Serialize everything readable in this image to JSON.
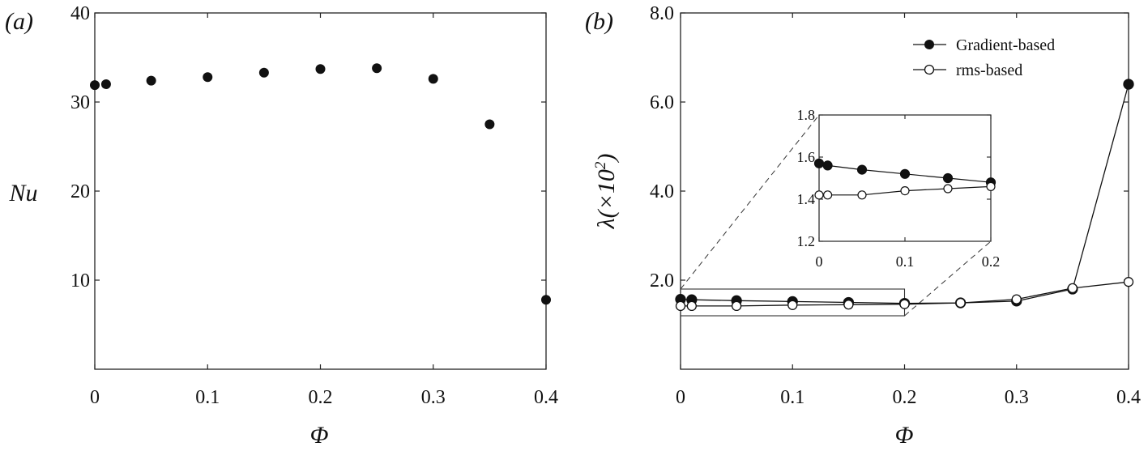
{
  "chart_data": [
    {
      "type": "scatter",
      "panel_label": "(a)",
      "xlabel": "Φ",
      "ylabel": "Nu",
      "xlim": [
        0,
        0.4
      ],
      "ylim": [
        0,
        40
      ],
      "xticks": [
        "0",
        "0.1",
        "0.2",
        "0.3",
        "0.4"
      ],
      "yticks": [
        "10",
        "20",
        "30",
        "40"
      ],
      "series": [
        {
          "marker": "filled-circle",
          "x": [
            0,
            0.01,
            0.05,
            0.1,
            0.15,
            0.2,
            0.25,
            0.3,
            0.35,
            0.4
          ],
          "y": [
            31.9,
            32.0,
            32.4,
            32.8,
            33.3,
            33.7,
            33.8,
            32.6,
            27.5,
            7.8
          ]
        }
      ]
    },
    {
      "type": "line",
      "panel_label": "(b)",
      "xlabel": "Φ",
      "ylabel": "λ(×10",
      "ylabel_sup": "2",
      "ylabel_close": ")",
      "xlim": [
        0,
        0.4
      ],
      "ylim": [
        0,
        8.0
      ],
      "xticks": [
        "0",
        "0.1",
        "0.2",
        "0.3",
        "0.4"
      ],
      "yticks": [
        "2.0",
        "4.0",
        "6.0",
        "8.0"
      ],
      "legend": "top-right",
      "series": [
        {
          "name": "Gradient-based",
          "marker": "filled-circle",
          "x": [
            0,
            0.01,
            0.05,
            0.1,
            0.15,
            0.2,
            0.25,
            0.3,
            0.35,
            0.4
          ],
          "y": [
            1.57,
            1.56,
            1.54,
            1.52,
            1.5,
            1.48,
            1.49,
            1.53,
            1.8,
            6.4
          ]
        },
        {
          "name": "rms-based",
          "marker": "open-circle",
          "x": [
            0,
            0.01,
            0.05,
            0.1,
            0.15,
            0.2,
            0.25,
            0.3,
            0.35,
            0.4
          ],
          "y": [
            1.42,
            1.42,
            1.42,
            1.44,
            1.45,
            1.46,
            1.49,
            1.57,
            1.82,
            1.96
          ]
        }
      ],
      "inset": {
        "xlim": [
          0,
          0.2
        ],
        "ylim": [
          1.2,
          1.8
        ],
        "xticks": [
          "0",
          "0.1",
          "0.2"
        ],
        "yticks": [
          "1.2",
          "1.4",
          "1.6",
          "1.8"
        ],
        "zoom_box_x": [
          0,
          0.2
        ],
        "zoom_box_y": [
          1.2,
          1.8
        ]
      }
    }
  ]
}
